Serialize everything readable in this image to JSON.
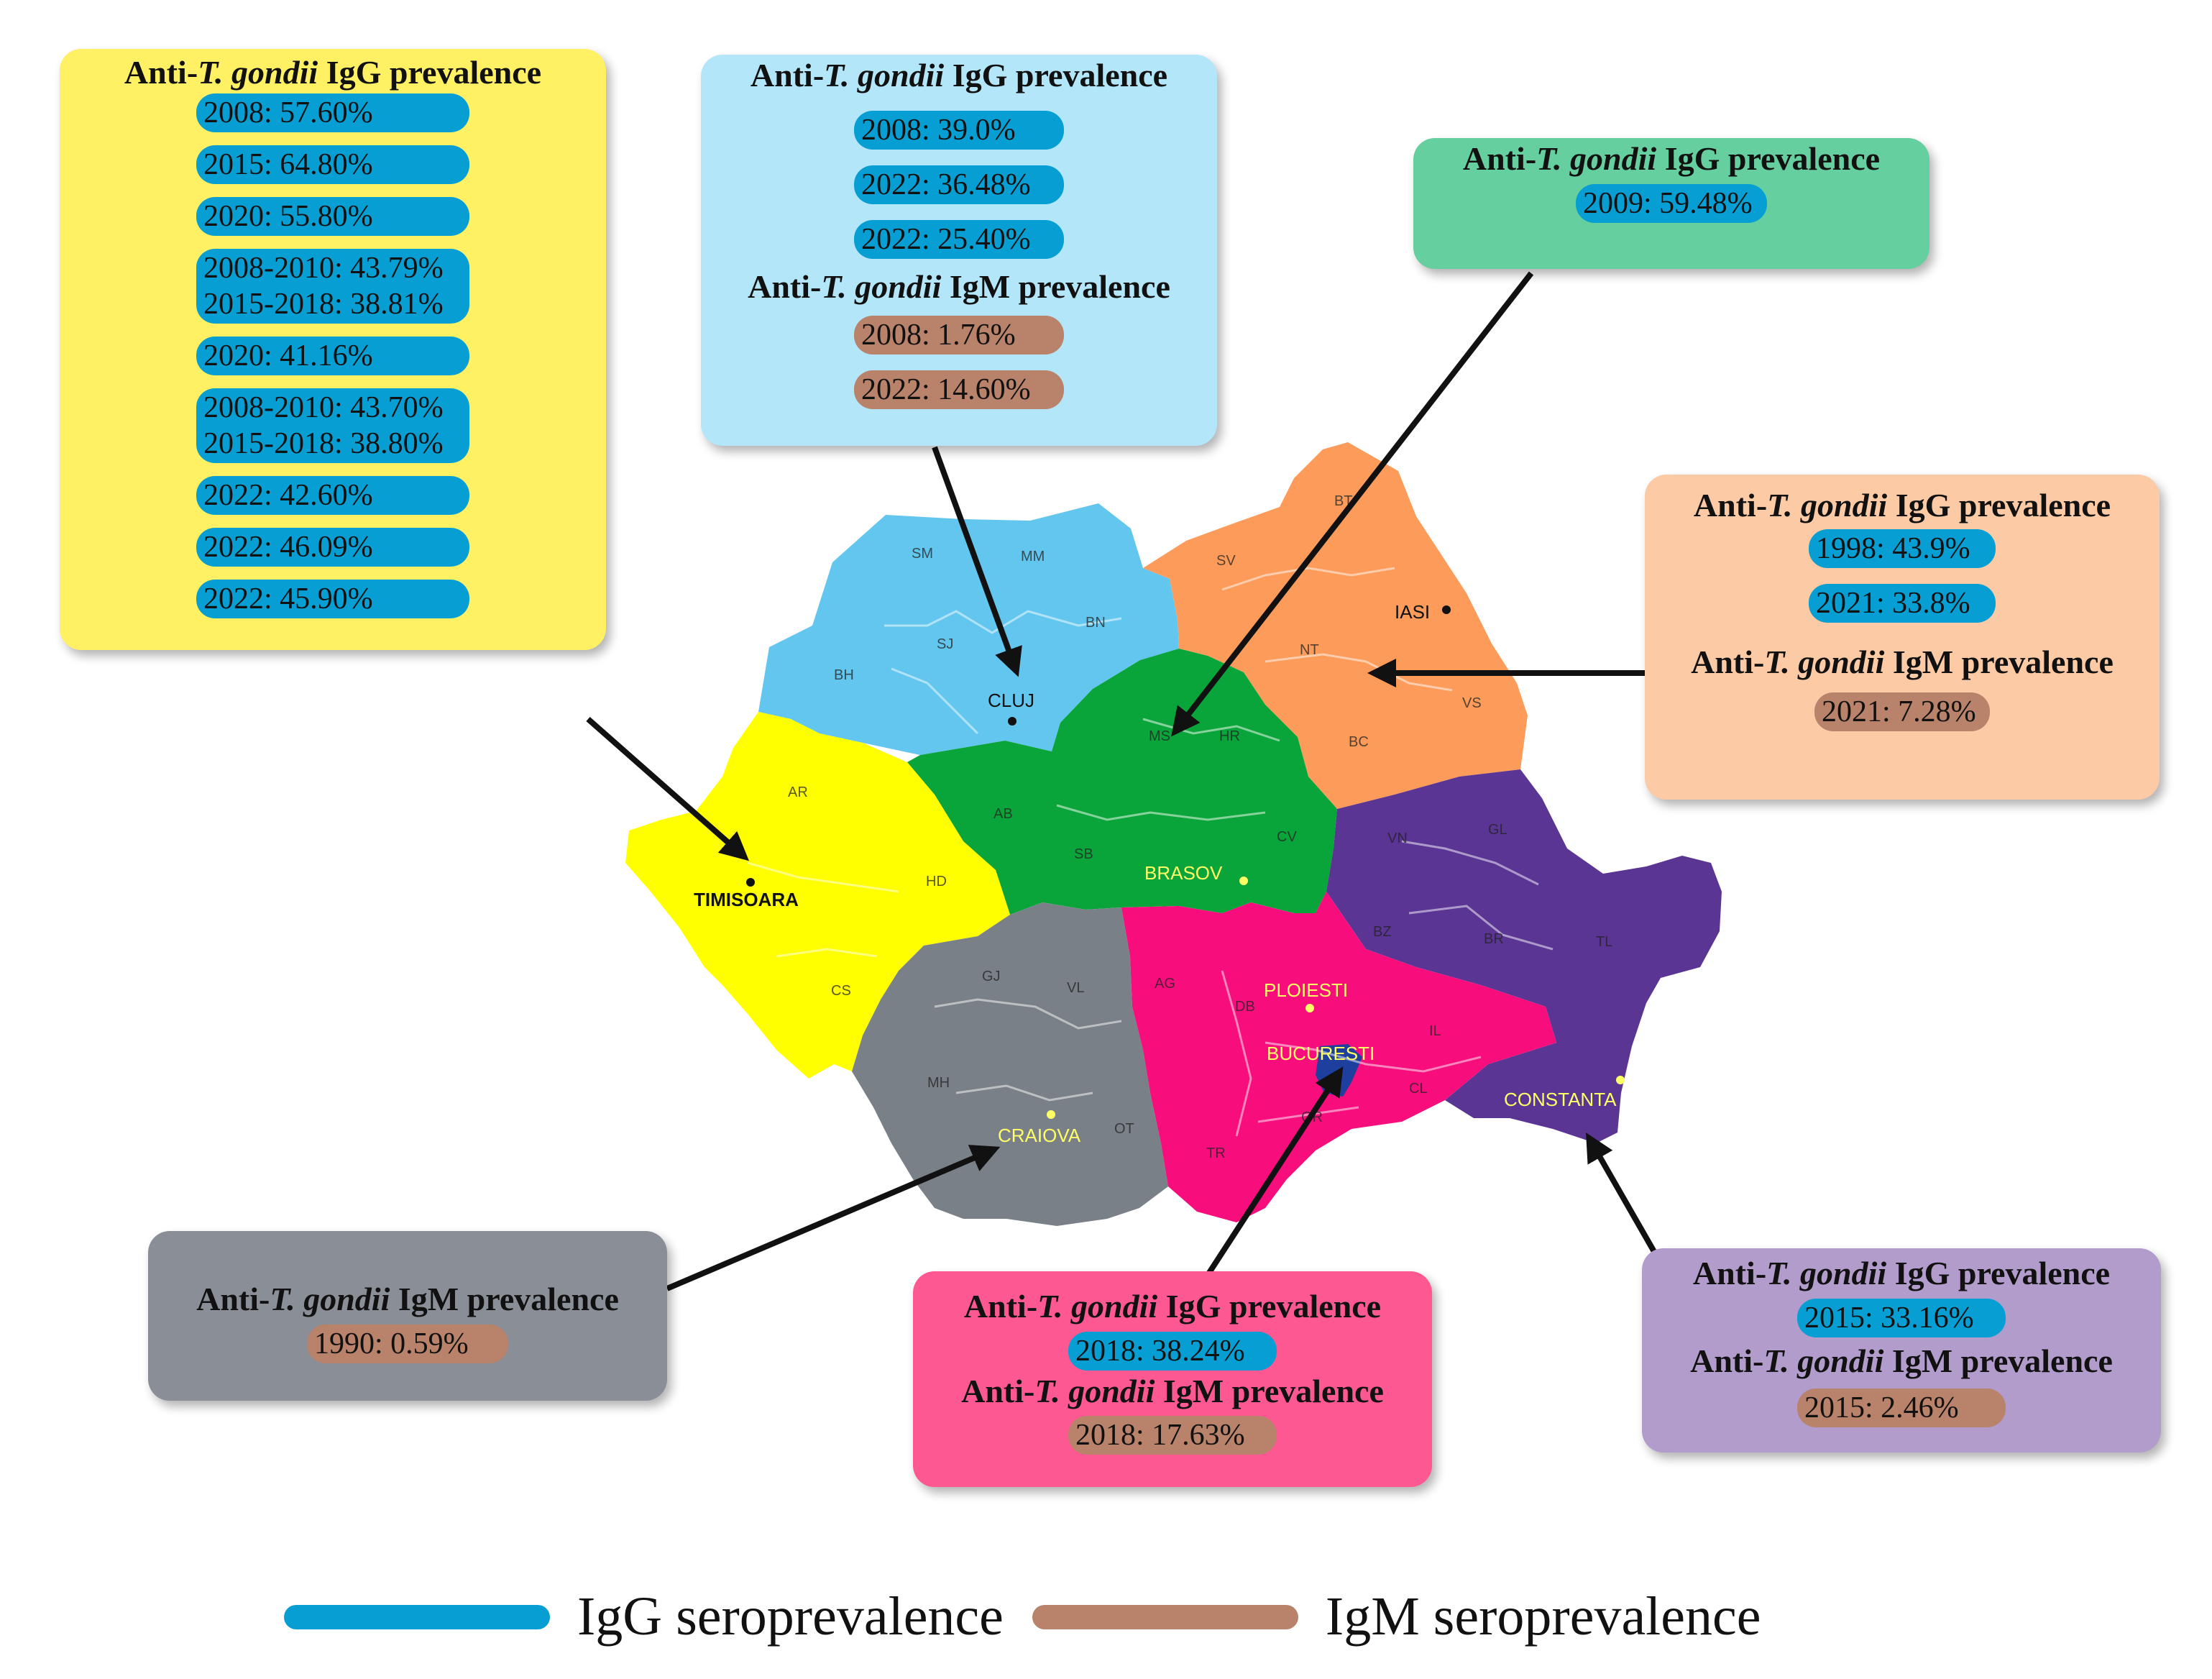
{
  "colors": {
    "igg_pill": "#079fd3",
    "igm_pill": "#b9826a",
    "west": "#ffff00",
    "north_west": "#63c6ee",
    "centre": "#0aa53a",
    "north_east": "#fc9b5a",
    "south_east": "#5a3594",
    "south_muntenia": "#f70d7c",
    "bucharest_ilfov": "#1f3f9e",
    "south_west": "#7a8087"
  },
  "labels": {
    "anti": "Anti-",
    "tg": "T. gondii",
    "igg_prev": " IgG prevalence",
    "igm_prev": " IgM prevalence"
  },
  "boxes": {
    "west": {
      "color": "#fff064",
      "igg": [
        "2008: 57.60%",
        "2015: 64.80%",
        "2020: 55.80%",
        "2008-2010: 43.79%\n2015-2018: 38.81%",
        "2020: 41.16%",
        "2008-2010: 43.70%\n2015-2018: 38.80%",
        "2022: 42.60%",
        "2022: 46.09%",
        "2022: 45.90%"
      ]
    },
    "north_west": {
      "color": "#b3e6f8",
      "igg": [
        "2008: 39.0%",
        "2022: 36.48%",
        "2022: 25.40%"
      ],
      "igm": [
        "2008: 1.76%",
        "2022: 14.60%"
      ]
    },
    "centre": {
      "color": "#66cfa0",
      "igg": [
        "2009: 59.48%"
      ]
    },
    "north_east": {
      "color": "#fdcaa6",
      "igg": [
        "1998: 43.9%",
        "2021: 33.8%"
      ],
      "igm": [
        "2021: 7.28%"
      ]
    },
    "south_west": {
      "color": "#8a8f97",
      "igm": [
        "1990: 0.59%"
      ]
    },
    "south": {
      "color": "#fd5892",
      "igg": [
        "2018: 38.24%"
      ],
      "igm": [
        "2018: 17.63%"
      ]
    },
    "south_east": {
      "color": "#b29ccc",
      "igg": [
        "2015: 33.16%"
      ],
      "igm": [
        "2015: 2.46%"
      ]
    }
  },
  "map": {
    "region_codes": {
      "sm": "SM",
      "mm": "MM",
      "bn": "BN",
      "sj": "SJ",
      "bh": "BH",
      "ms": "MS",
      "hr": "HR",
      "ab": "AB",
      "sb": "SB",
      "cv": "CV",
      "bt": "BT",
      "sv": "SV",
      "nt": "NT",
      "vs": "VS",
      "bc": "BC",
      "vn": "VN",
      "gl": "GL",
      "bz": "BZ",
      "br": "BR",
      "tl": "TL",
      "ar": "AR",
      "hd": "HD",
      "cs": "CS",
      "gj": "GJ",
      "vl": "VL",
      "mh": "MH",
      "ot": "OT",
      "ag": "AG",
      "db": "DB",
      "il": "IL",
      "cl": "CL",
      "gr": "GR",
      "tr": "TR"
    },
    "cities": {
      "cluj": "CLUJ",
      "iasi": "IASI",
      "timisoara": "TIMISOARA",
      "brasov": "BRASOV",
      "ploiesti": "PLOIESTI",
      "bucuresti": "BUCURESTI",
      "craiova": "CRAIOVA",
      "constanta": "CONSTANTA"
    }
  },
  "legend": {
    "igg": "IgG seroprevalence",
    "igm": "IgM seroprevalence"
  }
}
